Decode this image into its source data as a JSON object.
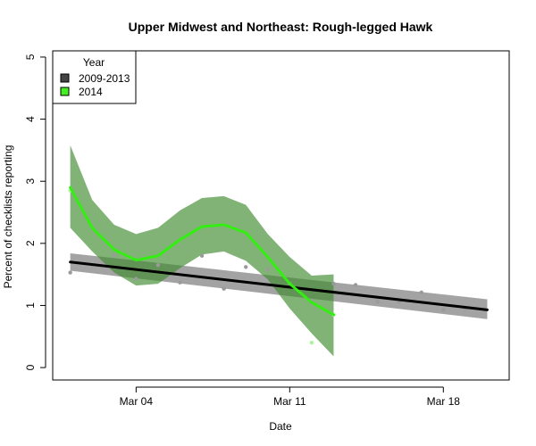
{
  "chart_data": {
    "type": "line",
    "title": "Upper Midwest and Northeast: Rough-legged Hawk",
    "xlabel": "Date",
    "ylabel": "Percent of checklists reporting",
    "xlim_day": [
      0.2,
      21.0
    ],
    "ylim": [
      -0.2,
      5.1
    ],
    "x_ticks": [
      {
        "day": 4,
        "label": "Mar 04"
      },
      {
        "day": 11,
        "label": "Mar 11"
      },
      {
        "day": 18,
        "label": "Mar 18"
      }
    ],
    "y_ticks": [
      0,
      1,
      2,
      3,
      4,
      5
    ],
    "grid": false,
    "legend": {
      "title": "Year",
      "placement": "top-left",
      "entries": [
        {
          "label": "2009-2013",
          "color": "#444444"
        },
        {
          "label": "2014",
          "color": "#44ee22"
        }
      ]
    },
    "series": [
      {
        "name": "2009-2013",
        "color": "#000000",
        "band_color": "#8c8c8c",
        "point_color": "#9a9a9a",
        "points": [
          [
            1,
            1.53
          ],
          [
            2,
            1.65
          ],
          [
            3,
            1.8
          ],
          [
            4,
            1.43
          ],
          [
            5,
            1.65
          ],
          [
            6,
            1.37
          ],
          [
            7,
            1.8
          ],
          [
            8,
            1.27
          ],
          [
            9,
            1.62
          ],
          [
            10,
            1.58
          ],
          [
            11,
            1.35
          ],
          [
            12,
            1.08
          ],
          [
            13,
            1.35
          ],
          [
            14,
            1.33
          ],
          [
            15,
            1.06
          ],
          [
            16,
            1.06
          ],
          [
            17,
            1.21
          ],
          [
            18,
            0.93
          ],
          [
            19,
            0.95
          ]
        ],
        "fit_x": [
          1,
          20
        ],
        "fit_y": [
          1.7,
          0.93
        ],
        "band_upper": [
          1.84,
          1.1
        ],
        "band_lower": [
          1.56,
          0.78
        ]
      },
      {
        "name": "2014",
        "color": "#33ee11",
        "band_color": "#3d8a2e",
        "point_color": "#aaf59a",
        "points": [
          [
            1,
            2.85
          ],
          [
            12,
            0.4
          ],
          [
            13,
            0.85
          ]
        ],
        "fit_x": [
          1,
          2,
          3,
          4,
          5,
          6,
          7,
          8,
          9,
          10,
          11,
          12,
          13
        ],
        "fit_y": [
          2.9,
          2.25,
          1.9,
          1.73,
          1.8,
          2.06,
          2.27,
          2.3,
          2.17,
          1.78,
          1.35,
          1.05,
          0.85
        ],
        "band_upper": [
          3.58,
          2.7,
          2.3,
          2.15,
          2.25,
          2.53,
          2.73,
          2.76,
          2.62,
          2.15,
          1.78,
          1.48,
          1.5
        ],
        "band_lower": [
          2.25,
          1.87,
          1.53,
          1.32,
          1.35,
          1.6,
          1.82,
          1.87,
          1.72,
          1.42,
          0.95,
          0.55,
          0.18
        ]
      }
    ]
  }
}
